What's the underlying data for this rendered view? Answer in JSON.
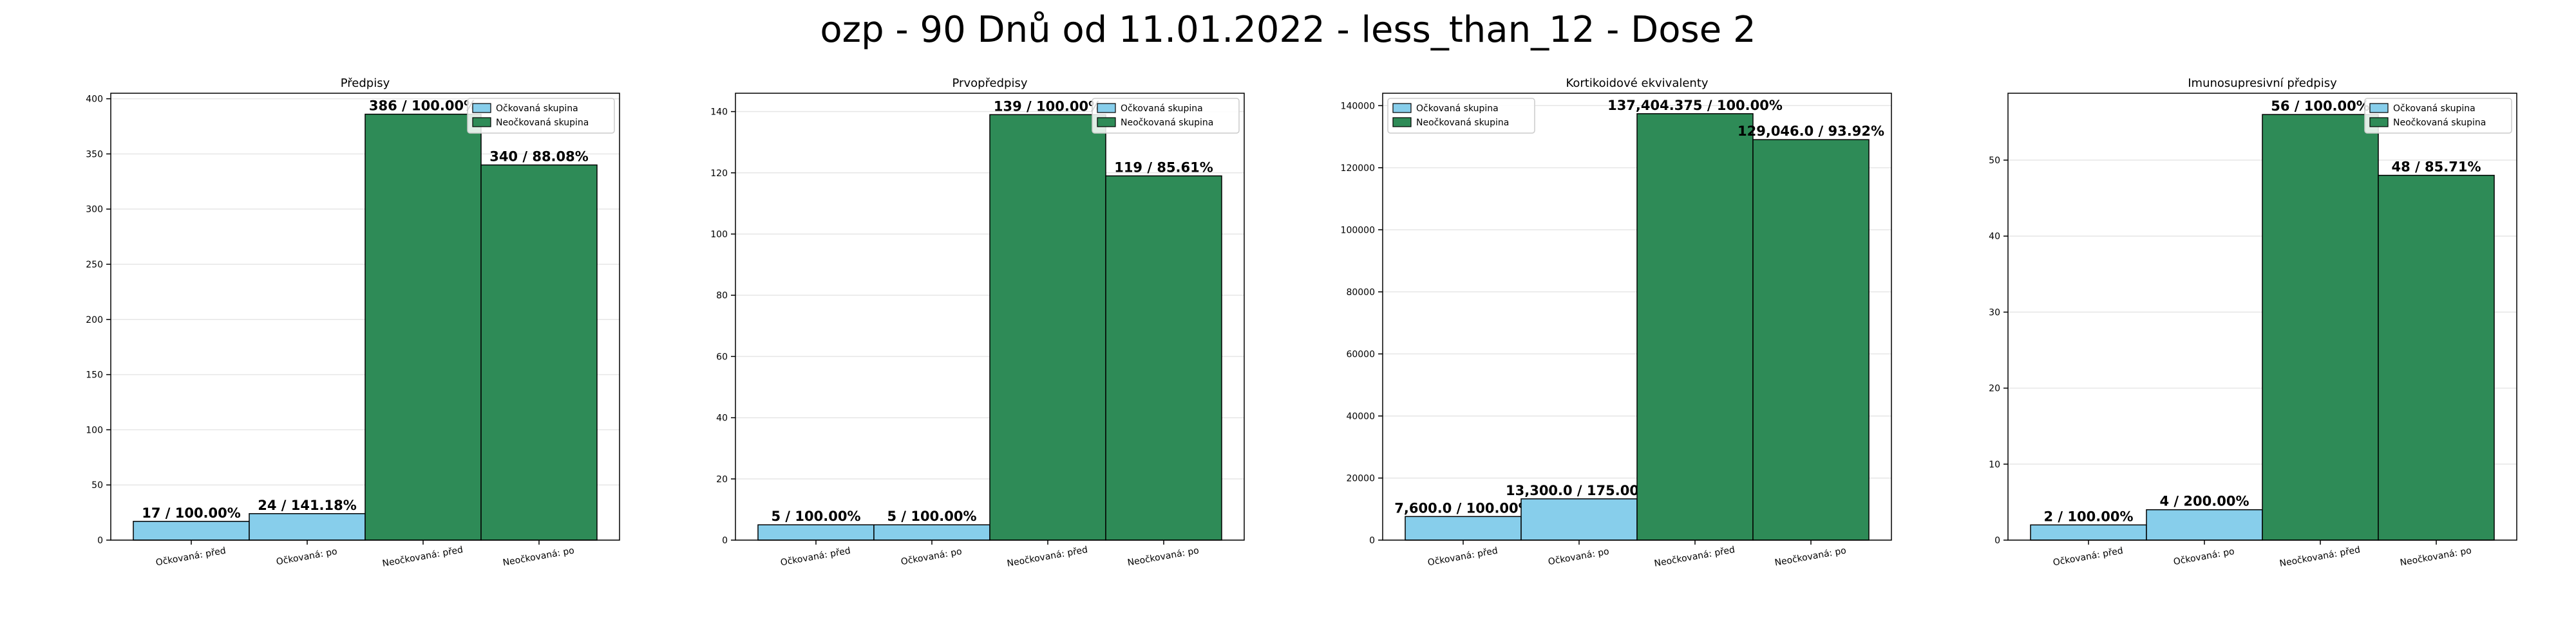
{
  "suptitle": "ozp - 90 Dnů od 11.01.2022 - less_than_12 - Dose 2",
  "colors": {
    "vaccinated": "#87ceeb",
    "unvaccinated": "#2e8b57"
  },
  "chart_data": [
    {
      "type": "bar",
      "title": "Předpisy",
      "categories": [
        "Očkovaná: před",
        "Očkovaná: po",
        "Neočkovaná: před",
        "Neočkovaná: po"
      ],
      "values": [
        17,
        24,
        386,
        340
      ],
      "bar_labels": [
        "17 / 100.00%",
        "24 / 141.18%",
        "386 / 100.00%",
        "340 / 88.08%"
      ],
      "series": [
        {
          "name": "Očkovaná skupina",
          "categories": [
            0,
            1
          ]
        },
        {
          "name": "Neočkovaná skupina",
          "categories": [
            2,
            3
          ]
        }
      ],
      "ylim": [
        0,
        405
      ],
      "yticks": [
        0,
        50,
        100,
        150,
        200,
        250,
        300,
        350,
        400
      ],
      "ytick_labels": [
        "0",
        "50",
        "100",
        "150",
        "200",
        "250",
        "300",
        "350",
        "400"
      ],
      "legend": "top-right",
      "grid": "y"
    },
    {
      "type": "bar",
      "title": "Prvopředpisy",
      "categories": [
        "Očkovaná: před",
        "Očkovaná: po",
        "Neočkovaná: před",
        "Neočkovaná: po"
      ],
      "values": [
        5,
        5,
        139,
        119
      ],
      "bar_labels": [
        "5 / 100.00%",
        "5 / 100.00%",
        "139 / 100.00%",
        "119 / 85.61%"
      ],
      "series": [
        {
          "name": "Očkovaná skupina",
          "categories": [
            0,
            1
          ]
        },
        {
          "name": "Neočkovaná skupina",
          "categories": [
            2,
            3
          ]
        }
      ],
      "ylim": [
        0,
        146
      ],
      "yticks": [
        0,
        20,
        40,
        60,
        80,
        100,
        120,
        140
      ],
      "ytick_labels": [
        "0",
        "20",
        "40",
        "60",
        "80",
        "100",
        "120",
        "140"
      ],
      "legend": "top-right",
      "grid": "y"
    },
    {
      "type": "bar",
      "title": "Kortikoidové ekvivalenty",
      "categories": [
        "Očkovaná: před",
        "Očkovaná: po",
        "Neočkovaná: před",
        "Neočkovaná: po"
      ],
      "values": [
        7600.0,
        13300.0,
        137404.375,
        129046.0
      ],
      "bar_labels": [
        "7,600.0 / 100.00%",
        "13,300.0 / 175.00%",
        "137,404.375 / 100.00%",
        "129,046.0 / 93.92%"
      ],
      "series": [
        {
          "name": "Očkovaná skupina",
          "categories": [
            0,
            1
          ]
        },
        {
          "name": "Neočkovaná skupina",
          "categories": [
            2,
            3
          ]
        }
      ],
      "ylim": [
        0,
        144000
      ],
      "yticks": [
        0,
        20000,
        40000,
        60000,
        80000,
        100000,
        120000,
        140000
      ],
      "ytick_labels": [
        "0",
        "20000",
        "40000",
        "60000",
        "80000",
        "100000",
        "120000",
        "140000"
      ],
      "legend": "top-left",
      "grid": "y"
    },
    {
      "type": "bar",
      "title": "Imunosupresivní předpisy",
      "categories": [
        "Očkovaná: před",
        "Očkovaná: po",
        "Neočkovaná: před",
        "Neočkovaná: po"
      ],
      "values": [
        2,
        4,
        56,
        48
      ],
      "bar_labels": [
        "2 / 100.00%",
        "4 / 200.00%",
        "56 / 100.00%",
        "48 / 85.71%"
      ],
      "series": [
        {
          "name": "Očkovaná skupina",
          "categories": [
            0,
            1
          ]
        },
        {
          "name": "Neočkovaná skupina",
          "categories": [
            2,
            3
          ]
        }
      ],
      "ylim": [
        0,
        58.8
      ],
      "yticks": [
        0,
        10,
        20,
        30,
        40,
        50
      ],
      "ytick_labels": [
        "0",
        "10",
        "20",
        "30",
        "40",
        "50"
      ],
      "legend": "top-right",
      "grid": "y"
    }
  ]
}
